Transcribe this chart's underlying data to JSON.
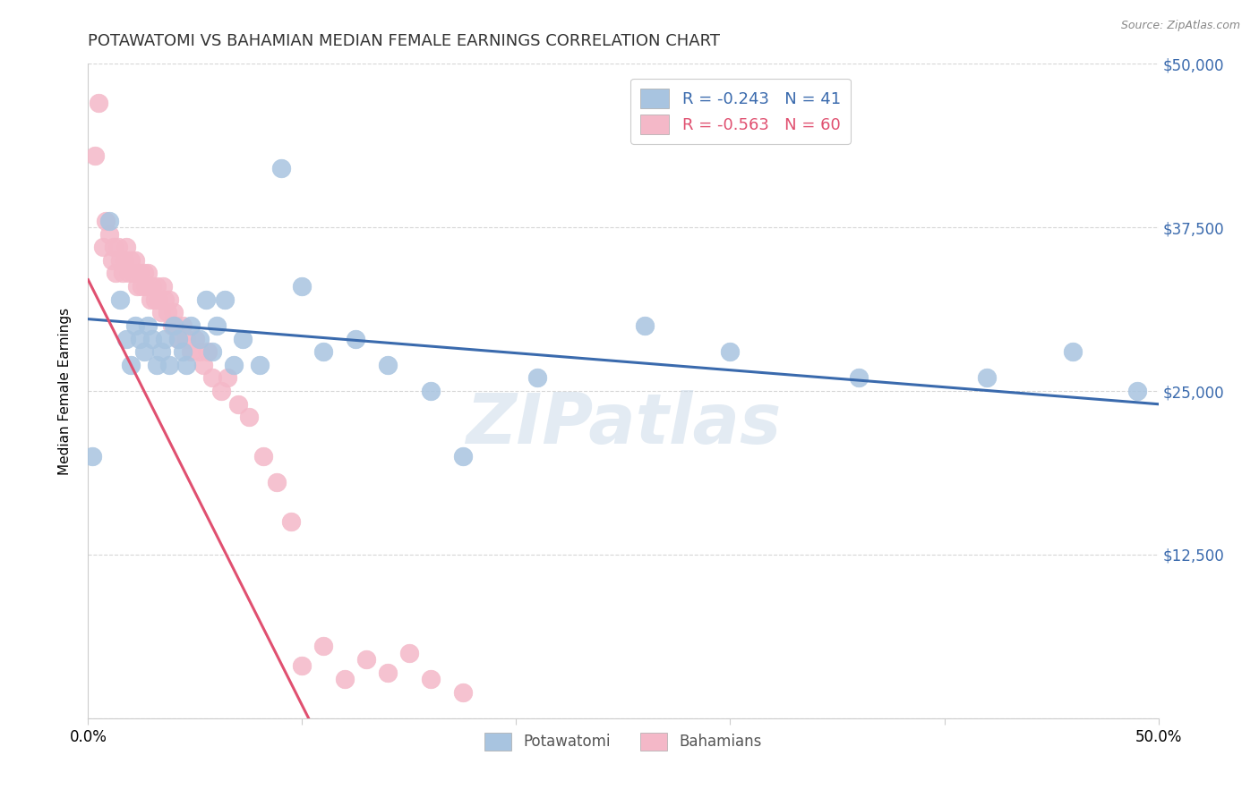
{
  "title": "POTAWATOMI VS BAHAMIAN MEDIAN FEMALE EARNINGS CORRELATION CHART",
  "source": "Source: ZipAtlas.com",
  "ylabel": "Median Female Earnings",
  "xlim": [
    0.0,
    0.5
  ],
  "ylim": [
    0,
    50000
  ],
  "yticks": [
    0,
    12500,
    25000,
    37500,
    50000
  ],
  "ytick_labels": [
    "",
    "$12,500",
    "$25,000",
    "$37,500",
    "$50,000"
  ],
  "xticks": [
    0.0,
    0.1,
    0.2,
    0.3,
    0.4,
    0.5
  ],
  "xtick_labels_show": [
    "0.0%",
    "",
    "",
    "",
    "",
    "50.0%"
  ],
  "potawatomi_color": "#a8c4e0",
  "bahamian_color": "#f4b8c8",
  "potawatomi_line_color": "#3a6aad",
  "bahamian_line_color": "#e05070",
  "legend_R_potawatomi": "-0.243",
  "legend_N_potawatomi": "41",
  "legend_R_bahamian": "-0.563",
  "legend_N_bahamian": "60",
  "watermark": "ZIPatlas",
  "potawatomi_x": [
    0.002,
    0.01,
    0.015,
    0.018,
    0.02,
    0.022,
    0.024,
    0.026,
    0.028,
    0.03,
    0.032,
    0.034,
    0.036,
    0.038,
    0.04,
    0.042,
    0.044,
    0.046,
    0.048,
    0.052,
    0.055,
    0.058,
    0.06,
    0.064,
    0.068,
    0.072,
    0.08,
    0.09,
    0.1,
    0.11,
    0.125,
    0.14,
    0.16,
    0.175,
    0.21,
    0.26,
    0.3,
    0.36,
    0.42,
    0.46,
    0.49
  ],
  "potawatomi_y": [
    20000,
    38000,
    32000,
    29000,
    27000,
    30000,
    29000,
    28000,
    30000,
    29000,
    27000,
    28000,
    29000,
    27000,
    30000,
    29000,
    28000,
    27000,
    30000,
    29000,
    32000,
    28000,
    30000,
    32000,
    27000,
    29000,
    27000,
    42000,
    33000,
    28000,
    29000,
    27000,
    25000,
    20000,
    26000,
    30000,
    28000,
    26000,
    26000,
    28000,
    25000
  ],
  "bahamian_x": [
    0.003,
    0.005,
    0.007,
    0.008,
    0.01,
    0.011,
    0.012,
    0.013,
    0.014,
    0.015,
    0.016,
    0.017,
    0.018,
    0.019,
    0.02,
    0.021,
    0.022,
    0.023,
    0.024,
    0.025,
    0.026,
    0.027,
    0.028,
    0.029,
    0.03,
    0.031,
    0.032,
    0.033,
    0.034,
    0.035,
    0.036,
    0.037,
    0.038,
    0.039,
    0.04,
    0.041,
    0.042,
    0.044,
    0.046,
    0.048,
    0.05,
    0.052,
    0.054,
    0.056,
    0.058,
    0.062,
    0.065,
    0.07,
    0.075,
    0.082,
    0.088,
    0.095,
    0.1,
    0.11,
    0.12,
    0.13,
    0.14,
    0.15,
    0.16,
    0.175
  ],
  "bahamian_y": [
    43000,
    47000,
    36000,
    38000,
    37000,
    35000,
    36000,
    34000,
    36000,
    35000,
    34000,
    35000,
    36000,
    34000,
    35000,
    34000,
    35000,
    33000,
    34000,
    33000,
    34000,
    33000,
    34000,
    32000,
    33000,
    32000,
    33000,
    32000,
    31000,
    33000,
    32000,
    31000,
    32000,
    30000,
    31000,
    30000,
    29000,
    30000,
    29000,
    28000,
    29000,
    28000,
    27000,
    28000,
    26000,
    25000,
    26000,
    24000,
    23000,
    20000,
    18000,
    15000,
    4000,
    5500,
    3000,
    4500,
    3500,
    5000,
    3000,
    2000
  ],
  "potawatomi_trend_x": [
    0.0,
    0.5
  ],
  "potawatomi_trend_y": [
    30500,
    24000
  ],
  "bahamian_trend_x": [
    0.0,
    0.103
  ],
  "bahamian_trend_y": [
    33500,
    0
  ]
}
